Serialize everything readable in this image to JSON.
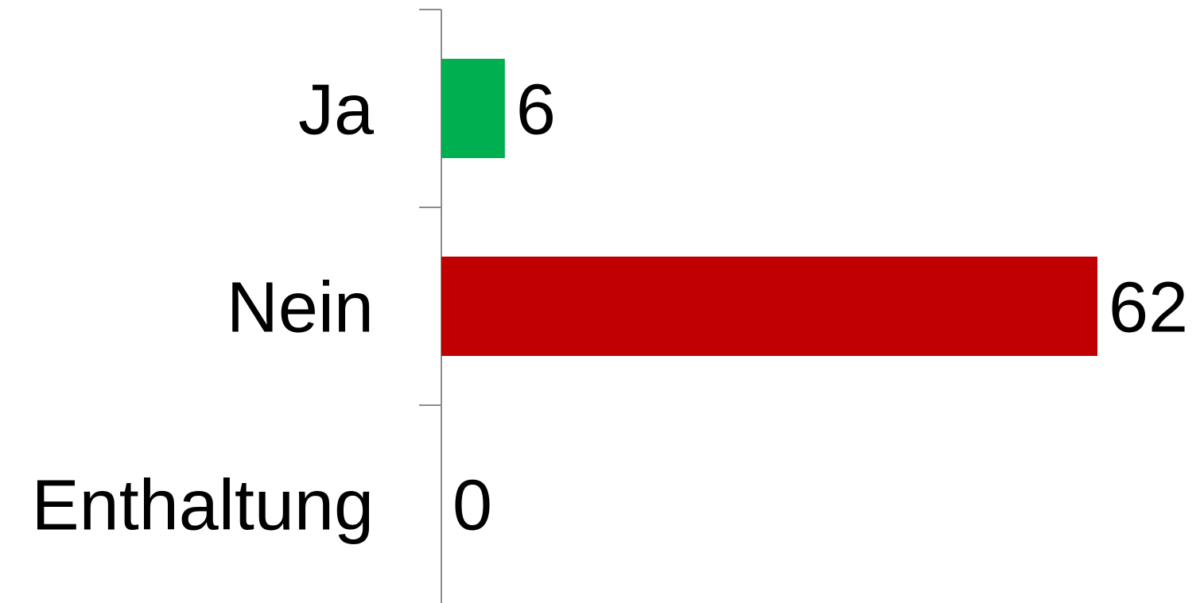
{
  "chart_data": {
    "type": "bar",
    "orientation": "horizontal",
    "categories": [
      "Ja",
      "Nein",
      "Enthaltung"
    ],
    "values": [
      6,
      62,
      0
    ],
    "colors": [
      "#00b050",
      "#c00000",
      "#7f7f7f"
    ],
    "data_labels": [
      "6",
      "62",
      "0"
    ],
    "title": "",
    "xlabel": "",
    "ylabel": "",
    "xlim": [
      0,
      62
    ],
    "grid": false,
    "legend": "none"
  }
}
